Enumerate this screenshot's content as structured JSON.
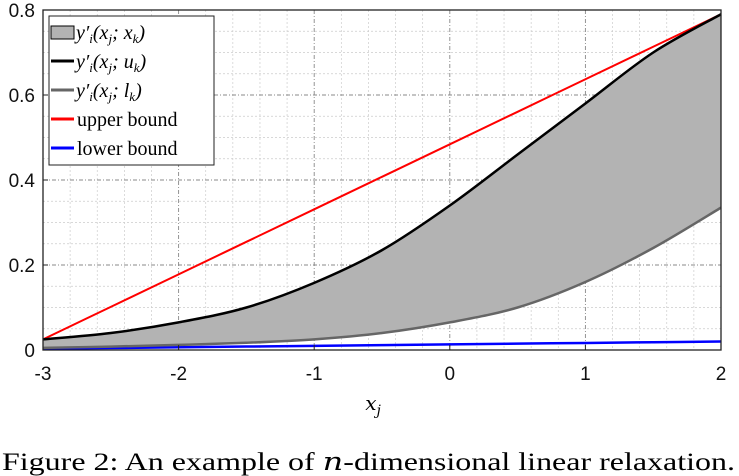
{
  "chart_data": {
    "type": "line",
    "title": "",
    "xlabel": "x_j",
    "ylabel": "",
    "xlim": [
      -3,
      2
    ],
    "ylim": [
      0,
      0.8
    ],
    "xticks": [
      "-3",
      "-2",
      "-1",
      "0",
      "1",
      "2"
    ],
    "yticks": [
      "0",
      "0.2",
      "0.4",
      "0.6",
      "0.8"
    ],
    "grid": true,
    "legend_position": "top-left",
    "x": [
      -3,
      -2.5,
      -2,
      -1.5,
      -1,
      -0.5,
      0,
      0.5,
      1,
      1.5,
      2
    ],
    "series": [
      {
        "name": "y'_i(x_j; x_k)",
        "kind": "fill-between",
        "color": "#b3b3b3"
      },
      {
        "name": "y'_i(x_j; u_k)",
        "color": "#000000",
        "values": [
          0.025,
          0.04,
          0.065,
          0.1,
          0.158,
          0.235,
          0.34,
          0.46,
          0.58,
          0.7,
          0.79
        ]
      },
      {
        "name": "y'_i(x_j; l_k)",
        "color": "#666666",
        "values": [
          0.005,
          0.008,
          0.012,
          0.017,
          0.025,
          0.04,
          0.065,
          0.1,
          0.16,
          0.24,
          0.335
        ]
      },
      {
        "name": "upper bound",
        "color": "#ff0000",
        "values": [
          0.025,
          0.1015,
          0.178,
          0.2545,
          0.331,
          0.4075,
          0.484,
          0.5605,
          0.637,
          0.7135,
          0.79
        ]
      },
      {
        "name": "lower bound",
        "color": "#0000ff",
        "values": [
          0.003,
          0.0047,
          0.0064,
          0.0081,
          0.0098,
          0.0115,
          0.0132,
          0.0149,
          0.0166,
          0.0183,
          0.02
        ]
      }
    ]
  },
  "legend": {
    "fill_label": {
      "y": "y",
      "sub": "i",
      "args": "(x",
      "j": "j",
      "sep": "; x",
      "k": "k",
      "close": ")"
    },
    "u_label": {
      "sep": "; u"
    },
    "l_label": {
      "sep": "; l"
    },
    "upper": "upper bound",
    "lower": "lower bound"
  },
  "xlabel_main": "x",
  "xlabel_sub": "j",
  "caption": {
    "prefix": "Figure 2: An example of ",
    "n": "n",
    "suffix": "-dimensional linear relaxation."
  }
}
